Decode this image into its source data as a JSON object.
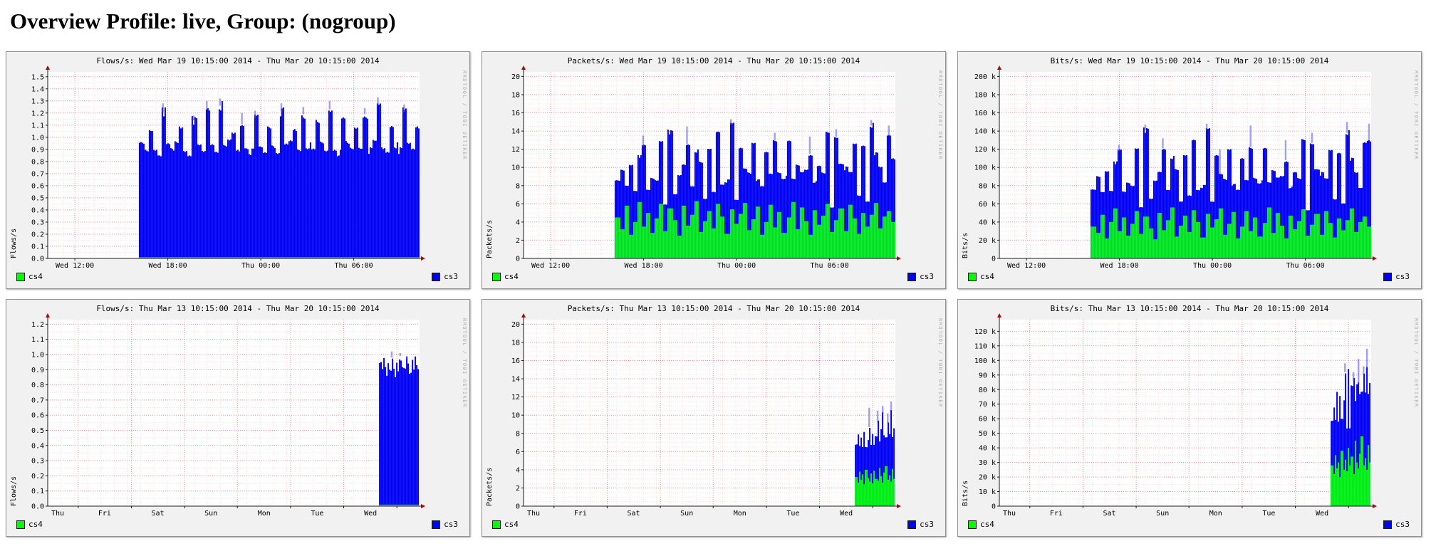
{
  "page": {
    "title": "Overview Profile: live, Group: (nogroup)"
  },
  "watermark": "RRDTOOL / TOBI OETIKER",
  "legend": {
    "left": {
      "label": "cs4",
      "color": "#00ff00"
    },
    "right": {
      "label": "cs3",
      "color": "#0000ff"
    }
  },
  "colors": {
    "cs4": "#00ff00",
    "cs3": "#0000ff",
    "peak": "rgba(80,80,255,0.55)",
    "arrow": "#b30000"
  },
  "chart_data": [
    {
      "type": "area",
      "title": "Flows/s: Wed Mar 19 10:15:00 2014 - Thu Mar 20 10:15:00 2014",
      "ylabel": "Flows/s",
      "ymax": 1.54,
      "y_tick_step": 0.1,
      "y_minor_div": 2,
      "y_ticks": [
        [
          0,
          "0.0"
        ],
        [
          0.1,
          "0.1"
        ],
        [
          0.2,
          "0.2"
        ],
        [
          0.3,
          "0.3"
        ],
        [
          0.4,
          "0.4"
        ],
        [
          0.5,
          "0.5"
        ],
        [
          0.6,
          "0.6"
        ],
        [
          0.7,
          "0.7"
        ],
        [
          0.8,
          "0.8"
        ],
        [
          0.9,
          "0.9"
        ],
        [
          1.0,
          "1.0"
        ],
        [
          1.1,
          "1.1"
        ],
        [
          1.2,
          "1.2"
        ],
        [
          1.3,
          "1.3"
        ],
        [
          1.4,
          "1.4"
        ],
        [
          1.5,
          "1.5"
        ]
      ],
      "x_labels": [
        [
          0.073,
          "Wed 12:00"
        ],
        [
          0.323,
          "Wed 18:00"
        ],
        [
          0.573,
          "Thu 00:00"
        ],
        [
          0.823,
          "Thu 06:00"
        ]
      ],
      "x_major": [
        0.073,
        0.323,
        0.573,
        0.823
      ],
      "x_minor": 24,
      "start_frac": 0.245,
      "series": [
        {
          "name": "cs4",
          "color": "#00ff00",
          "const": 0.01
        },
        {
          "name": "cs3",
          "color": "#0000ff",
          "values": [
            0.93,
            0.88,
            1.05,
            0.9,
            0.86,
            1.2,
            0.92,
            0.88,
            0.95,
            1.08,
            0.89,
            0.86,
            1.13,
            0.91,
            0.87,
            1.22,
            0.94,
            0.89,
            1.25,
            0.9,
            0.95,
            1.02,
            0.88,
            1.1,
            0.92,
            0.87,
            1.15,
            0.9,
            0.86,
            1.08,
            0.93,
            0.88,
            1.2,
            0.91,
            0.95,
            1.05,
            0.89,
            1.18,
            0.92,
            0.87,
            1.1,
            0.94,
            0.88,
            1.22,
            0.9,
            0.86,
            1.12,
            0.93,
            0.89,
            1.07,
            0.91,
            1.18,
            0.88,
            0.94,
            1.25,
            0.9,
            0.87,
            1.1,
            0.92,
            0.88,
            1.2,
            0.93,
            0.89,
            1.08
          ]
        }
      ],
      "peaks": [
        [
          5,
          1.28
        ],
        [
          12,
          1.18
        ],
        [
          15,
          1.3
        ],
        [
          18,
          1.32
        ],
        [
          23,
          1.2
        ],
        [
          26,
          1.22
        ],
        [
          32,
          1.28
        ],
        [
          37,
          1.25
        ],
        [
          43,
          1.3
        ],
        [
          51,
          1.24
        ],
        [
          54,
          1.33
        ],
        [
          60,
          1.27
        ]
      ]
    },
    {
      "type": "area",
      "title": "Packets/s: Wed Mar 19 10:15:00 2014 - Thu Mar 20 10:15:00 2014",
      "ylabel": "Packets/s",
      "ymax": 20.5,
      "y_tick_step": 2,
      "y_minor_div": 4,
      "y_ticks": [
        [
          0,
          "0"
        ],
        [
          2,
          "2"
        ],
        [
          4,
          "4"
        ],
        [
          6,
          "6"
        ],
        [
          8,
          "8"
        ],
        [
          10,
          "10"
        ],
        [
          12,
          "12"
        ],
        [
          14,
          "14"
        ],
        [
          16,
          "16"
        ],
        [
          18,
          "18"
        ],
        [
          20,
          "20"
        ]
      ],
      "x_labels": [
        [
          0.073,
          "Wed 12:00"
        ],
        [
          0.323,
          "Wed 18:00"
        ],
        [
          0.573,
          "Thu 00:00"
        ],
        [
          0.823,
          "Thu 06:00"
        ]
      ],
      "x_major": [
        0.073,
        0.323,
        0.573,
        0.823
      ],
      "x_minor": 24,
      "start_frac": 0.245,
      "series": [
        {
          "name": "cs4",
          "color": "#00ff00",
          "values": [
            4.5,
            3.2,
            5.8,
            2.6,
            4.0,
            6.2,
            3.5,
            5.0,
            2.8,
            4.4,
            6.0,
            3.0,
            5.5,
            4.2,
            2.5,
            5.8,
            3.6,
            4.8,
            6.3,
            2.9,
            4.1,
            5.2,
            3.3,
            6.0,
            4.6,
            2.7,
            5.4,
            3.8,
            4.9,
            6.1,
            3.1,
            4.3,
            5.7,
            2.6,
            4.0,
            5.9,
            3.4,
            5.1,
            2.8,
            4.5,
            6.2,
            3.2,
            5.6,
            4.1,
            2.6,
            5.3,
            3.7,
            4.7,
            6.0,
            2.9,
            4.2,
            5.5,
            3.0,
            5.9,
            4.4,
            2.7,
            5.0,
            3.5,
            4.8,
            6.1,
            3.3,
            4.6,
            5.2,
            4.0
          ]
        },
        {
          "name": "cs3",
          "color": "#0000ff",
          "values": [
            4.0,
            6.5,
            2.2,
            7.8,
            3.5,
            5.0,
            8.8,
            2.5,
            6.0,
            4.2,
            7.0,
            3.0,
            8.4,
            2.8,
            6.6,
            4.5,
            9.0,
            3.2,
            5.5,
            7.5,
            2.4,
            6.8,
            4.0,
            8.0,
            3.6,
            5.8,
            9.3,
            2.6,
            7.2,
            3.8,
            6.4,
            8.6,
            2.9,
            5.2,
            7.6,
            3.4,
            9.6,
            4.4,
            6.1,
            8.2,
            2.5,
            7.0,
            3.9,
            5.7,
            8.9,
            3.1,
            6.3,
            4.6,
            7.8,
            2.7,
            9.2,
            5.0,
            6.9,
            3.5,
            8.1,
            4.2,
            7.4,
            2.8,
            9.8,
            5.4,
            6.6,
            3.7,
            8.3,
            7.0
          ]
        }
      ],
      "peaks": [
        [
          6,
          13.5
        ],
        [
          12,
          14.0
        ],
        [
          16,
          14.5
        ],
        [
          26,
          15.3
        ],
        [
          36,
          13.8
        ],
        [
          44,
          13.4
        ],
        [
          50,
          14.2
        ],
        [
          58,
          15.2
        ],
        [
          62,
          14.6
        ]
      ]
    },
    {
      "type": "area",
      "title": "Bits/s: Wed Mar 19 10:15:00 2014 - Thu Mar 20 10:15:00 2014",
      "ylabel": "Bits/s",
      "ymax": 205,
      "y_tick_step": 20,
      "y_minor_div": 4,
      "y_unit": "k",
      "y_ticks": [
        [
          0,
          "0"
        ],
        [
          20,
          "20 k"
        ],
        [
          40,
          "40 k"
        ],
        [
          60,
          "60 k"
        ],
        [
          80,
          "80 k"
        ],
        [
          100,
          "100 k"
        ],
        [
          120,
          "120 k"
        ],
        [
          140,
          "140 k"
        ],
        [
          160,
          "160 k"
        ],
        [
          180,
          "180 k"
        ],
        [
          200,
          "200 k"
        ]
      ],
      "x_labels": [
        [
          0.073,
          "Wed 12:00"
        ],
        [
          0.323,
          "Wed 18:00"
        ],
        [
          0.573,
          "Thu 00:00"
        ],
        [
          0.823,
          "Thu 06:00"
        ]
      ],
      "x_major": [
        0.073,
        0.323,
        0.573,
        0.823
      ],
      "x_minor": 24,
      "start_frac": 0.245,
      "series": [
        {
          "name": "cs4",
          "color": "#00ff00",
          "values": [
            35,
            28,
            48,
            22,
            40,
            55,
            30,
            45,
            25,
            38,
            52,
            27,
            46,
            33,
            21,
            50,
            31,
            42,
            56,
            24,
            36,
            47,
            29,
            53,
            40,
            23,
            49,
            34,
            43,
            55,
            26,
            38,
            51,
            22,
            35,
            52,
            30,
            45,
            24,
            39,
            56,
            28,
            50,
            36,
            22,
            47,
            32,
            41,
            54,
            25,
            37,
            49,
            26,
            52,
            39,
            23,
            44,
            31,
            42,
            55,
            29,
            40,
            46,
            35
          ]
        },
        {
          "name": "cs3",
          "color": "#0000ff",
          "values": [
            40,
            62,
            25,
            75,
            35,
            50,
            88,
            28,
            58,
            42,
            70,
            30,
            95,
            32,
            64,
            45,
            90,
            34,
            55,
            72,
            26,
            66,
            40,
            78,
            36,
            56,
            92,
            28,
            70,
            38,
            62,
            84,
            30,
            52,
            74,
            34,
            92,
            44,
            60,
            80,
            27,
            68,
            39,
            55,
            86,
            31,
            61,
            46,
            76,
            28,
            90,
            50,
            67,
            35,
            79,
            42,
            72,
            30,
            96,
            54,
            64,
            37,
            81,
            95
          ]
        }
      ],
      "peaks": [
        [
          6,
          125
        ],
        [
          12,
          147
        ],
        [
          16,
          132
        ],
        [
          26,
          148
        ],
        [
          29,
          120
        ],
        [
          36,
          146
        ],
        [
          44,
          130
        ],
        [
          50,
          138
        ],
        [
          58,
          150
        ],
        [
          63,
          148
        ]
      ]
    },
    {
      "type": "area",
      "title": "Flows/s: Thu Mar 13 10:15:00 2014 - Thu Mar 20 10:15:00 2014",
      "ylabel": "Flows/s",
      "ymax": 1.23,
      "y_tick_step": 0.1,
      "y_minor_div": 2,
      "y_ticks": [
        [
          0,
          "0.0"
        ],
        [
          0.1,
          "0.1"
        ],
        [
          0.2,
          "0.2"
        ],
        [
          0.3,
          "0.3"
        ],
        [
          0.4,
          "0.4"
        ],
        [
          0.5,
          "0.5"
        ],
        [
          0.6,
          "0.6"
        ],
        [
          0.7,
          "0.7"
        ],
        [
          0.8,
          "0.8"
        ],
        [
          0.9,
          "0.9"
        ],
        [
          1.0,
          "1.0"
        ],
        [
          1.1,
          "1.1"
        ],
        [
          1.2,
          "1.2"
        ]
      ],
      "x_labels": [
        [
          0.01,
          "Thu"
        ],
        [
          0.153,
          "Fri"
        ],
        [
          0.296,
          "Sat"
        ],
        [
          0.439,
          "Sun"
        ],
        [
          0.582,
          "Mon"
        ],
        [
          0.725,
          "Tue"
        ],
        [
          0.868,
          "Wed"
        ]
      ],
      "x_major": [
        0.082,
        0.225,
        0.368,
        0.51,
        0.653,
        0.796,
        0.939
      ],
      "x_minor": 28,
      "start_frac": 0.891,
      "series": [
        {
          "name": "cs4",
          "color": "#00ff00",
          "const": 0.01
        },
        {
          "name": "cs3",
          "color": "#0000ff",
          "values": [
            0.92,
            0.88,
            0.96,
            0.9,
            0.85,
            0.94,
            0.89,
            0.97,
            0.91,
            0.86,
            0.95,
            0.9,
            0.98,
            0.88,
            0.93,
            0.87,
            0.96,
            0.91,
            0.85,
            0.94,
            0.89,
            0.97,
            0.92,
            0.9
          ]
        }
      ],
      "peaks": [
        [
          7,
          1.02
        ],
        [
          12,
          1.01
        ],
        [
          16,
          0.99
        ]
      ]
    },
    {
      "type": "area",
      "title": "Packets/s: Thu Mar 13 10:15:00 2014 - Thu Mar 20 10:15:00 2014",
      "ylabel": "Packets/s",
      "ymax": 20.5,
      "y_tick_step": 2,
      "y_minor_div": 4,
      "y_ticks": [
        [
          0,
          "0"
        ],
        [
          2,
          "2"
        ],
        [
          4,
          "4"
        ],
        [
          6,
          "6"
        ],
        [
          8,
          "8"
        ],
        [
          10,
          "10"
        ],
        [
          12,
          "12"
        ],
        [
          14,
          "14"
        ],
        [
          16,
          "16"
        ],
        [
          18,
          "18"
        ],
        [
          20,
          "20"
        ]
      ],
      "x_labels": [
        [
          0.01,
          "Thu"
        ],
        [
          0.153,
          "Fri"
        ],
        [
          0.296,
          "Sat"
        ],
        [
          0.439,
          "Sun"
        ],
        [
          0.582,
          "Mon"
        ],
        [
          0.725,
          "Tue"
        ],
        [
          0.868,
          "Wed"
        ]
      ],
      "x_major": [
        0.082,
        0.225,
        0.368,
        0.51,
        0.653,
        0.796,
        0.939
      ],
      "x_minor": 28,
      "start_frac": 0.891,
      "series": [
        {
          "name": "cs4",
          "color": "#00ff00",
          "values": [
            3.2,
            2.6,
            3.8,
            2.9,
            3.5,
            2.4,
            4.0,
            3.1,
            2.7,
            3.6,
            2.5,
            3.9,
            3.0,
            2.8,
            4.2,
            3.3,
            2.6,
            3.7,
            4.4,
            2.9,
            3.4,
            2.7,
            4.1,
            3.0
          ]
        },
        {
          "name": "cs3",
          "color": "#0000ff",
          "values": [
            3.5,
            5.2,
            2.8,
            4.6,
            3.0,
            5.8,
            2.5,
            4.2,
            6.0,
            3.2,
            5.5,
            2.9,
            4.8,
            6.4,
            3.0,
            5.0,
            7.6,
            4.0,
            3.1,
            6.2,
            4.5,
            7.8,
            3.5,
            5.6
          ]
        }
      ],
      "peaks": [
        [
          8,
          10.8
        ],
        [
          13,
          10.5
        ],
        [
          16,
          11.0
        ],
        [
          19,
          10.2
        ],
        [
          21,
          11.5
        ]
      ]
    },
    {
      "type": "area",
      "title": "Bits/s: Thu Mar 13 10:15:00 2014 - Thu Mar 20 10:15:00 2014",
      "ylabel": "Bits/s",
      "ymax": 128,
      "y_tick_step": 10,
      "y_minor_div": 2,
      "y_unit": "k",
      "y_ticks": [
        [
          0,
          "0"
        ],
        [
          10,
          "10 k"
        ],
        [
          20,
          "20 k"
        ],
        [
          30,
          "30 k"
        ],
        [
          40,
          "40 k"
        ],
        [
          50,
          "50 k"
        ],
        [
          60,
          "60 k"
        ],
        [
          70,
          "70 k"
        ],
        [
          80,
          "80 k"
        ],
        [
          90,
          "90 k"
        ],
        [
          100,
          "100 k"
        ],
        [
          110,
          "110 k"
        ],
        [
          120,
          "120 k"
        ]
      ],
      "x_labels": [
        [
          0.01,
          "Thu"
        ],
        [
          0.153,
          "Fri"
        ],
        [
          0.296,
          "Sat"
        ],
        [
          0.439,
          "Sun"
        ],
        [
          0.582,
          "Mon"
        ],
        [
          0.725,
          "Tue"
        ],
        [
          0.868,
          "Wed"
        ]
      ],
      "x_major": [
        0.082,
        0.225,
        0.368,
        0.51,
        0.653,
        0.796,
        0.939
      ],
      "x_minor": 28,
      "start_frac": 0.891,
      "series": [
        {
          "name": "cs4",
          "color": "#00ff00",
          "values": [
            28,
            22,
            35,
            26,
            30,
            20,
            38,
            25,
            32,
            24,
            40,
            28,
            34,
            22,
            45,
            30,
            26,
            36,
            48,
            28,
            33,
            25,
            42,
            30
          ]
        },
        {
          "name": "cs3",
          "color": "#0000ff",
          "values": [
            30,
            45,
            24,
            52,
            28,
            56,
            22,
            48,
            60,
            30,
            55,
            26,
            50,
            64,
            28,
            52,
            58,
            40,
            30,
            62,
            45,
            70,
            35,
            55
          ]
        }
      ],
      "peaks": [
        [
          8,
          98
        ],
        [
          13,
          92
        ],
        [
          16,
          101
        ],
        [
          19,
          96
        ],
        [
          21,
          108
        ]
      ]
    }
  ]
}
